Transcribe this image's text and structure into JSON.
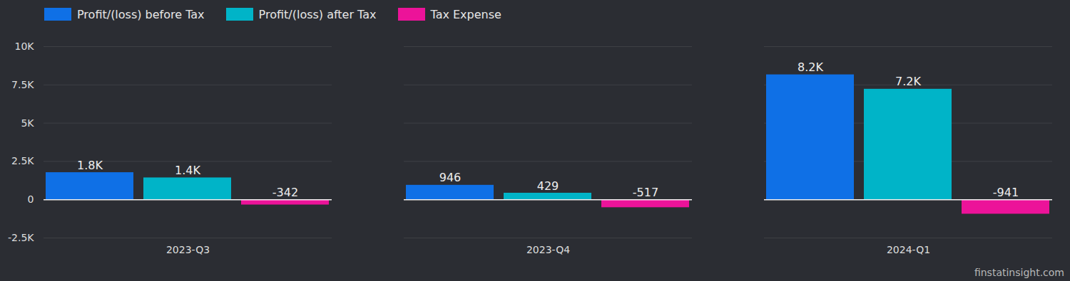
{
  "chart_data": {
    "type": "bar",
    "categories": [
      "2023-Q3",
      "2023-Q4",
      "2024-Q1"
    ],
    "series": [
      {
        "name": "Profit/(loss) before Tax",
        "color": "#0f70e6",
        "values": [
          1771,
          946,
          8160
        ],
        "value_labels": [
          "1.8K",
          "946",
          "8.2K"
        ]
      },
      {
        "name": "Profit/(loss) after Tax",
        "color": "#00b4c8",
        "values": [
          1429,
          429,
          7219
        ],
        "value_labels": [
          "1.4K",
          "429",
          "7.2K"
        ]
      },
      {
        "name": "Tax Expense",
        "color": "#ec1399",
        "values": [
          -342,
          -517,
          -941
        ],
        "value_labels": [
          "-342",
          "-517",
          "-941"
        ]
      }
    ],
    "ylim": [
      -2500,
      10000
    ],
    "yticks": [
      {
        "value": -2500,
        "label": "-2.5K"
      },
      0,
      {
        "value": 2500,
        "label": "2.5K"
      },
      {
        "value": 5000,
        "label": "5K"
      },
      {
        "value": 7500,
        "label": "7.5K"
      },
      {
        "value": 10000,
        "label": "10K"
      }
    ],
    "grid": true,
    "legend": "top",
    "data_labels": true,
    "annotations": [
      "finstatinsight.com"
    ]
  }
}
